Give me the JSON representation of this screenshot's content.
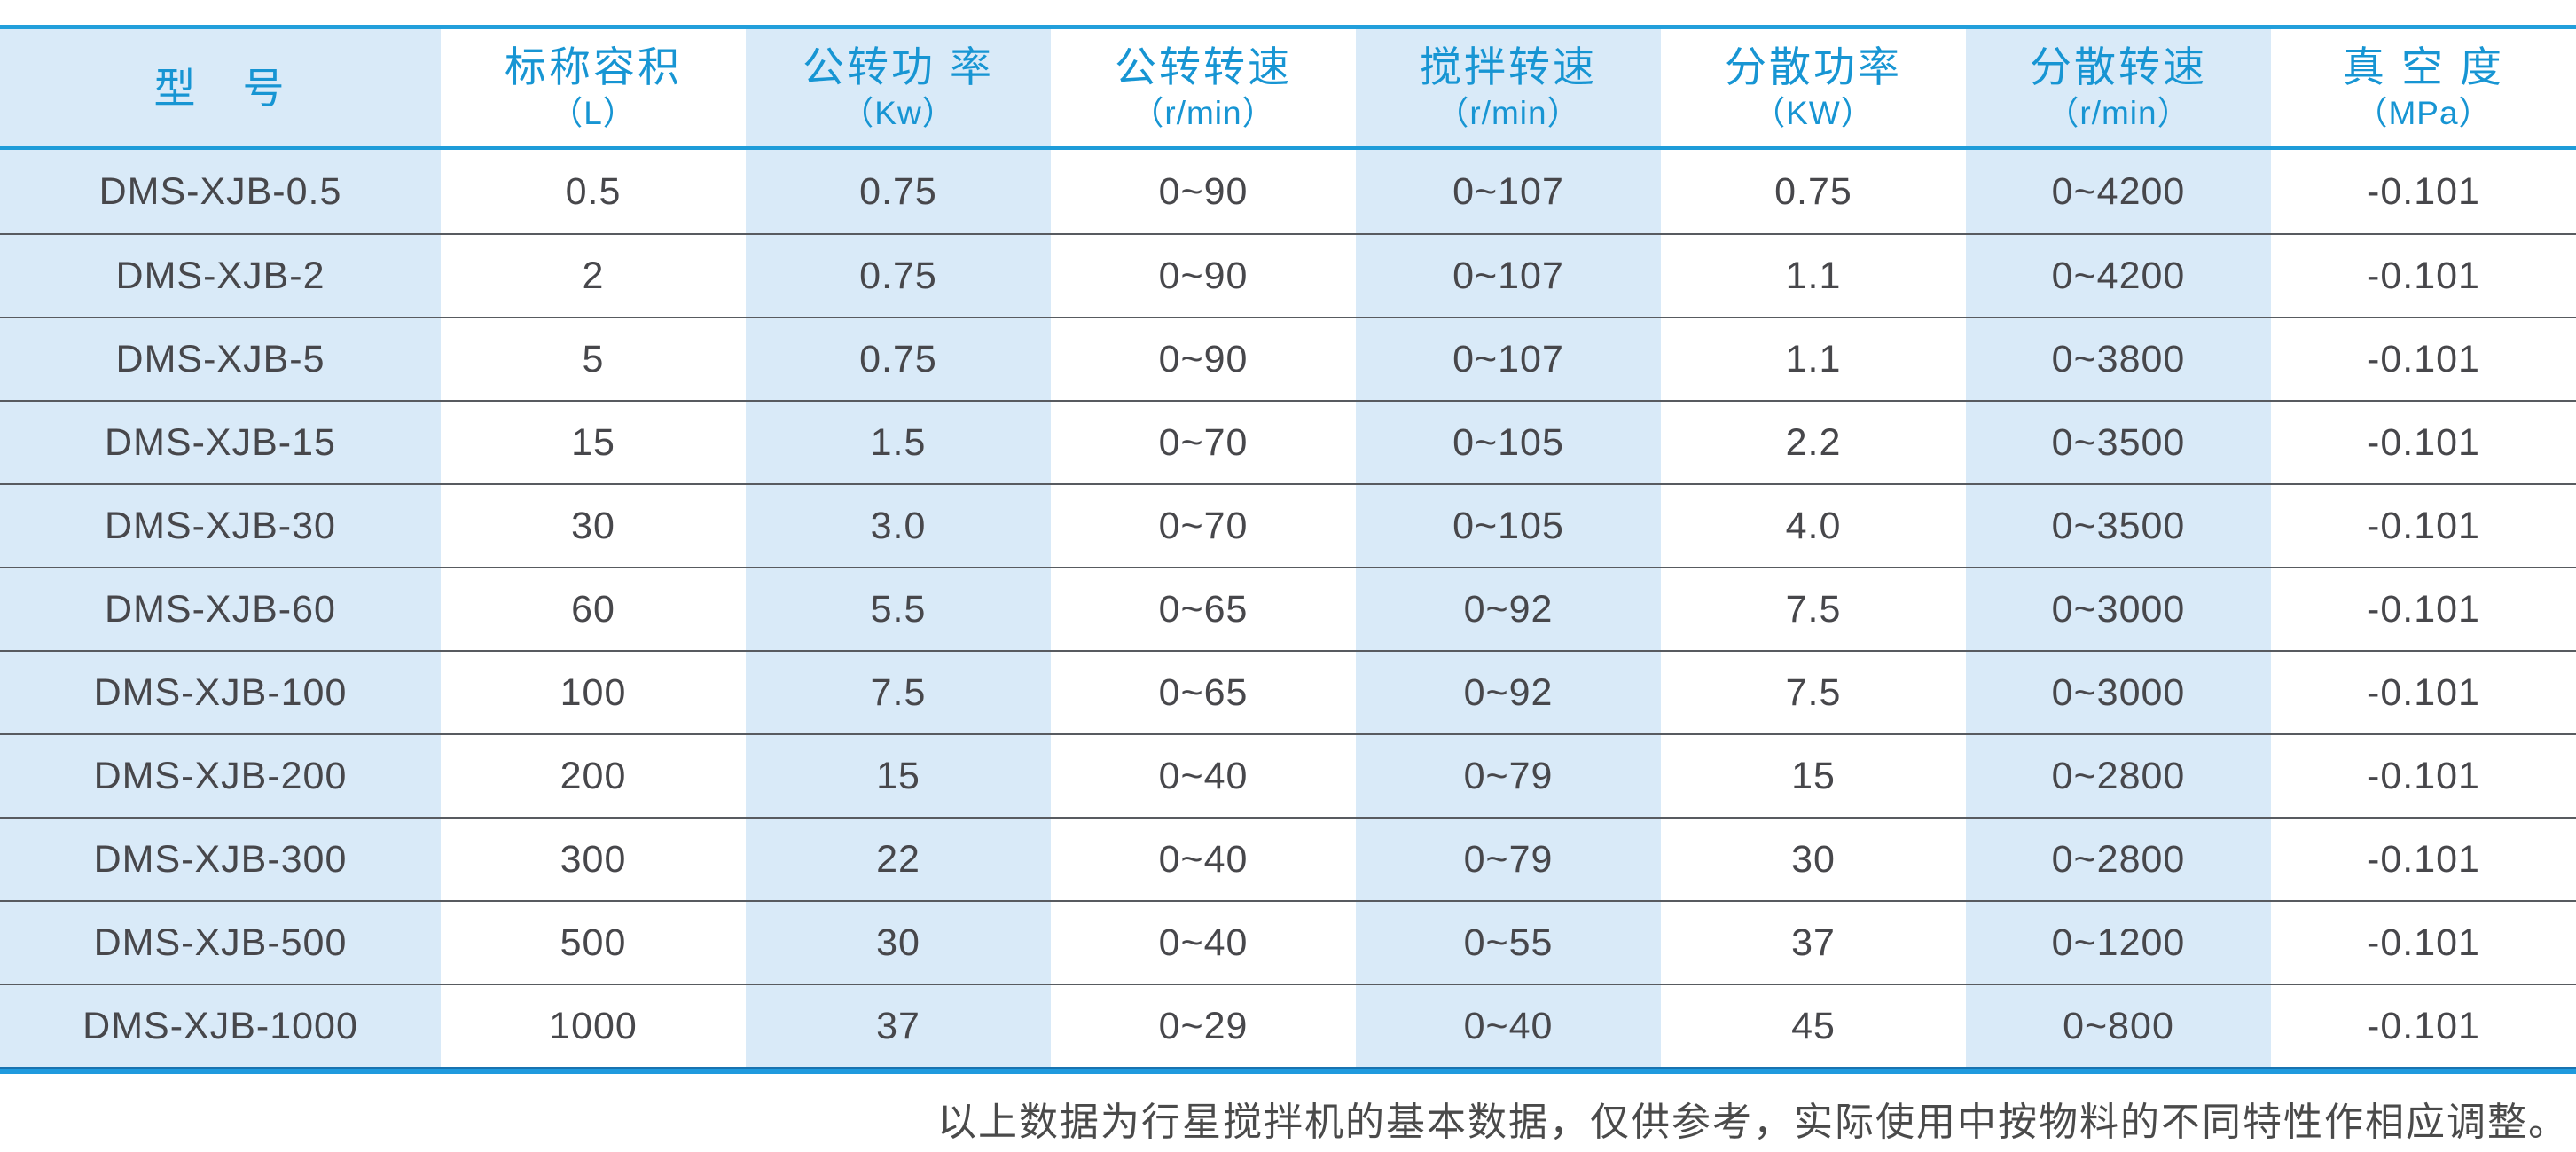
{
  "colors": {
    "accent_blue_text": "#1795d3",
    "rule_blue_top": "#229fdb",
    "rule_blue_header_bottom": "#1e9cd9",
    "rule_blue_table_bottom": "#1f9ade",
    "rule_blue_table_bottom_edge": "#1973b0",
    "column_tint": "#d9eaf8",
    "cell_text": "#47474b",
    "row_rule_gray": "#585b60",
    "footnote_text": "#4a4a4a"
  },
  "table": {
    "columns": [
      {
        "id": "model",
        "label": "型　号",
        "unit": "",
        "tinted": true
      },
      {
        "id": "nominal-volume",
        "label": "标称容积",
        "unit": "（L）",
        "tinted": false
      },
      {
        "id": "revolution-power",
        "label": "公转功 率",
        "unit": "（Kw）",
        "tinted": true
      },
      {
        "id": "revolution-speed",
        "label": "公转转速",
        "unit": "（r/min）",
        "tinted": false
      },
      {
        "id": "stirring-speed",
        "label": "搅拌转速",
        "unit": "（r/min）",
        "tinted": true
      },
      {
        "id": "dispersion-power",
        "label": "分散功率",
        "unit": "（KW）",
        "tinted": false
      },
      {
        "id": "dispersion-speed",
        "label": "分散转速",
        "unit": "（r/min）",
        "tinted": true
      },
      {
        "id": "vacuum-degree",
        "label": "真 空 度",
        "unit": "（MPa）",
        "tinted": false
      }
    ],
    "rows": [
      [
        "DMS-XJB-0.5",
        "0.5",
        "0.75",
        "0~90",
        "0~107",
        "0.75",
        "0~4200",
        "-0.101"
      ],
      [
        "DMS-XJB-2",
        "2",
        "0.75",
        "0~90",
        "0~107",
        "1.1",
        "0~4200",
        "-0.101"
      ],
      [
        "DMS-XJB-5",
        "5",
        "0.75",
        "0~90",
        "0~107",
        "1.1",
        "0~3800",
        "-0.101"
      ],
      [
        "DMS-XJB-15",
        "15",
        "1.5",
        "0~70",
        "0~105",
        "2.2",
        "0~3500",
        "-0.101"
      ],
      [
        "DMS-XJB-30",
        "30",
        "3.0",
        "0~70",
        "0~105",
        "4.0",
        "0~3500",
        "-0.101"
      ],
      [
        "DMS-XJB-60",
        "60",
        "5.5",
        "0~65",
        "0~92",
        "7.5",
        "0~3000",
        "-0.101"
      ],
      [
        "DMS-XJB-100",
        "100",
        "7.5",
        "0~65",
        "0~92",
        "7.5",
        "0~3000",
        "-0.101"
      ],
      [
        "DMS-XJB-200",
        "200",
        "15",
        "0~40",
        "0~79",
        "15",
        "0~2800",
        "-0.101"
      ],
      [
        "DMS-XJB-300",
        "300",
        "22",
        "0~40",
        "0~79",
        "30",
        "0~2800",
        "-0.101"
      ],
      [
        "DMS-XJB-500",
        "500",
        "30",
        "0~40",
        "0~55",
        "37",
        "0~1200",
        "-0.101"
      ],
      [
        "DMS-XJB-1000",
        "1000",
        "37",
        "0~29",
        "0~40",
        "45",
        "0~800",
        "-0.101"
      ]
    ]
  },
  "footnote": "以上数据为行星搅拌机的基本数据，仅供参考，实际使用中按物料的不同特性作相应调整。"
}
